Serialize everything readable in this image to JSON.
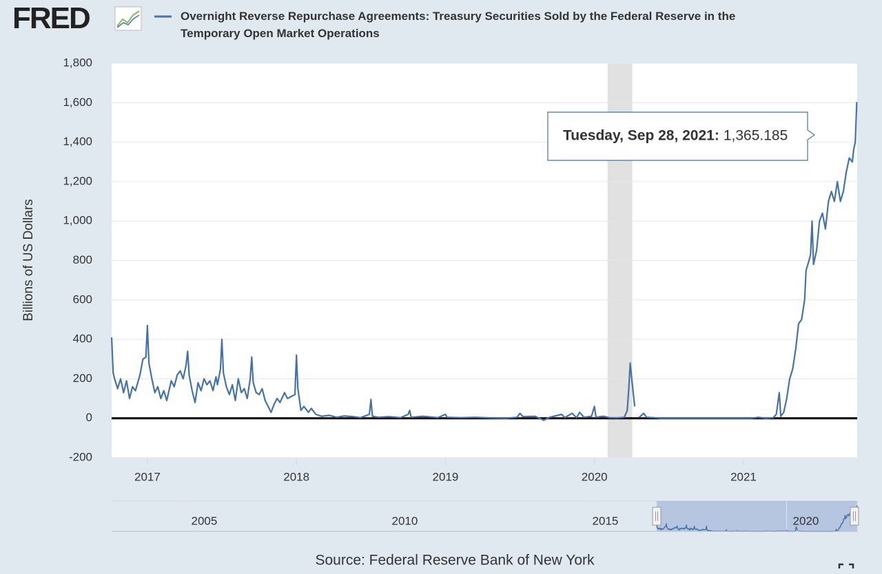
{
  "logo": "FRED",
  "chart_data": {
    "type": "line",
    "title": "Overnight Reverse Repurchase Agreements: Treasury Securities Sold by the Federal Reserve in the Temporary Open Market Operations",
    "y_label": "Billions of US Dollars",
    "source": "Source: Federal Reserve Bank of New York",
    "x": [
      2016.76,
      2016.77,
      2016.78,
      2016.8,
      2016.82,
      2016.84,
      2016.86,
      2016.88,
      2016.9,
      2016.92,
      2016.95,
      2016.97,
      2016.99,
      2017.0,
      2017.01,
      2017.03,
      2017.05,
      2017.07,
      2017.09,
      2017.11,
      2017.13,
      2017.16,
      2017.18,
      2017.2,
      2017.22,
      2017.24,
      2017.26,
      2017.27,
      2017.28,
      2017.3,
      2017.32,
      2017.34,
      2017.36,
      2017.38,
      2017.4,
      2017.42,
      2017.44,
      2017.46,
      2017.47,
      2017.49,
      2017.5,
      2017.51,
      2017.53,
      2017.55,
      2017.57,
      2017.59,
      2017.61,
      2017.63,
      2017.65,
      2017.67,
      2017.69,
      2017.7,
      2017.71,
      2017.73,
      2017.75,
      2017.77,
      2017.79,
      2017.81,
      2017.83,
      2017.85,
      2017.87,
      2017.89,
      2017.92,
      2017.94,
      2017.99,
      2018.0,
      2018.01,
      2018.03,
      2018.05,
      2018.08,
      2018.1,
      2018.13,
      2018.17,
      2018.22,
      2018.27,
      2018.32,
      2018.38,
      2018.43,
      2018.49,
      2018.5,
      2018.51,
      2018.55,
      2018.62,
      2018.7,
      2018.75,
      2018.76,
      2018.77,
      2018.85,
      2018.95,
      2019.0,
      2019.01,
      2019.1,
      2019.2,
      2019.3,
      2019.4,
      2019.48,
      2019.5,
      2019.52,
      2019.6,
      2019.66,
      2019.7,
      2019.78,
      2019.8,
      2019.85,
      2019.88,
      2019.9,
      2019.93,
      2019.98,
      2020.0,
      2020.01,
      2020.06,
      2020.1,
      2020.15,
      2020.2,
      2020.22,
      2020.23,
      2020.24,
      2020.25,
      2020.27,
      2020.28,
      2020.3,
      2020.33,
      2020.35,
      2020.4,
      2020.45,
      2020.55,
      2020.7,
      2020.9,
      2021.05,
      2021.1,
      2021.15,
      2021.2,
      2021.22,
      2021.24,
      2021.25,
      2021.27,
      2021.29,
      2021.31,
      2021.33,
      2021.35,
      2021.37,
      2021.39,
      2021.41,
      2021.42,
      2021.44,
      2021.45,
      2021.46,
      2021.47,
      2021.49,
      2021.51,
      2021.53,
      2021.55,
      2021.57,
      2021.59,
      2021.61,
      2021.63,
      2021.65,
      2021.67,
      2021.69,
      2021.71,
      2021.73,
      2021.74,
      2021.75,
      2021.76
    ],
    "series": [
      {
        "name": "Overnight Reverse Repurchase Agreements",
        "color": "#4572a7",
        "values": [
          410,
          230,
          200,
          150,
          200,
          130,
          190,
          100,
          160,
          140,
          220,
          300,
          310,
          470,
          280,
          200,
          130,
          160,
          100,
          140,
          90,
          190,
          160,
          220,
          240,
          200,
          270,
          340,
          220,
          140,
          80,
          180,
          140,
          200,
          170,
          190,
          140,
          210,
          170,
          250,
          400,
          230,
          160,
          120,
          170,
          90,
          200,
          130,
          150,
          100,
          200,
          310,
          180,
          130,
          120,
          150,
          90,
          60,
          30,
          70,
          100,
          80,
          130,
          100,
          120,
          320,
          150,
          40,
          60,
          30,
          50,
          20,
          10,
          15,
          5,
          12,
          8,
          3,
          20,
          95,
          10,
          5,
          8,
          3,
          20,
          40,
          5,
          10,
          3,
          20,
          5,
          3,
          5,
          2,
          0,
          5,
          25,
          8,
          10,
          -10,
          5,
          20,
          3,
          25,
          3,
          30,
          5,
          10,
          60,
          5,
          10,
          3,
          2,
          5,
          40,
          150,
          280,
          200,
          60,
          null,
          5,
          25,
          5,
          3,
          0,
          0,
          0,
          0,
          0,
          5,
          0,
          3,
          20,
          130,
          10,
          30,
          100,
          200,
          250,
          350,
          480,
          500,
          600,
          750,
          800,
          830,
          1000,
          780,
          850,
          1000,
          1040,
          960,
          1100,
          1150,
          1100,
          1200,
          1100,
          1150,
          1250,
          1320,
          1300,
          1365.185,
          1400,
          1604
        ]
      }
    ],
    "xlim": [
      2016.76,
      2021.763
    ],
    "xticks": [
      2017,
      2018,
      2019,
      2020,
      2021
    ],
    "ylim": [
      -200,
      1800
    ],
    "yticks": [
      -200,
      0,
      200,
      400,
      600,
      800,
      {
        "value": 1000,
        "label": "1,000"
      },
      {
        "value": 1200,
        "label": "1,200"
      },
      {
        "value": 1400,
        "label": "1,400"
      },
      {
        "value": 1600,
        "label": "1,600"
      },
      {
        "value": 1800,
        "label": "1,800"
      }
    ],
    "grid": true,
    "shaded_periods": [
      [
        2020.088,
        2020.254
      ]
    ],
    "tooltip": {
      "date": "Tuesday, Sep 28, 2021:",
      "value": 1365.185,
      "value_label": "1,365.185"
    },
    "navigator": {
      "xlim": [
        2003.17,
        2021.76
      ],
      "xticks": [
        2005,
        2010,
        2015,
        2020
      ],
      "selection": [
        2016.76,
        2021.76
      ]
    }
  }
}
